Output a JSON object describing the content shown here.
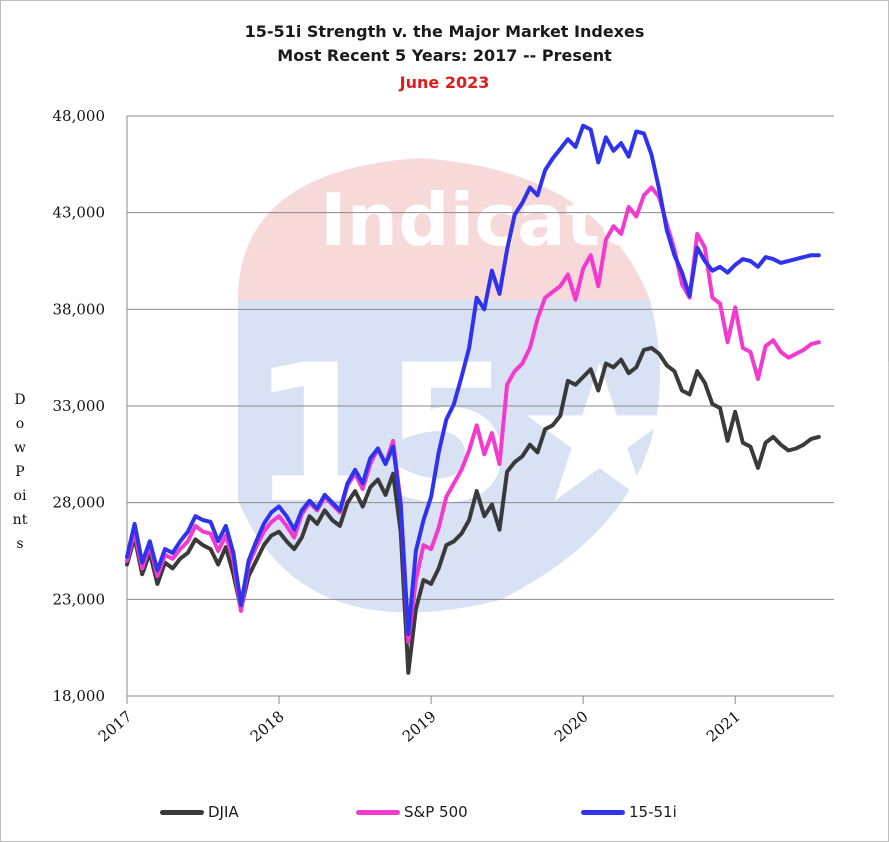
{
  "chart_data": {
    "type": "line",
    "title": "15-51i Strength v. the Major Market Indexes",
    "subtitle": "Most Recent 5 Years: 2017 -- Present",
    "date_label": "June 2023",
    "ylabel": "Dow Points",
    "xlabel": "",
    "ylim": [
      18000,
      48000
    ],
    "xlim": [
      2017.0,
      2021.65
    ],
    "y_ticks": [
      18000,
      23000,
      28000,
      33000,
      38000,
      43000,
      48000
    ],
    "y_tick_labels": [
      "18,000",
      "23,000",
      "28,000",
      "33,000",
      "38,000",
      "43,000",
      "48,000"
    ],
    "x_ticks": [
      2017,
      2018,
      2019,
      2020,
      2021
    ],
    "x_tick_labels": [
      "2017",
      "2018",
      "2019",
      "2020",
      "2021"
    ],
    "grid": "horizontal",
    "legend_position": "bottom",
    "series": [
      {
        "name": "DJIA",
        "color": "#3a3a3a",
        "x": [
          2017.0,
          2017.05,
          2017.1,
          2017.15,
          2017.2,
          2017.25,
          2017.3,
          2017.35,
          2017.4,
          2017.45,
          2017.5,
          2017.55,
          2017.6,
          2017.65,
          2017.7,
          2017.75,
          2017.8,
          2017.85,
          2017.9,
          2017.95,
          2018.0,
          2018.05,
          2018.1,
          2018.15,
          2018.2,
          2018.25,
          2018.3,
          2018.35,
          2018.4,
          2018.45,
          2018.5,
          2018.55,
          2018.6,
          2018.65,
          2018.7,
          2018.75,
          2018.8,
          2018.85,
          2018.9,
          2018.95,
          2019.0,
          2019.05,
          2019.1,
          2019.15,
          2019.2,
          2019.25,
          2019.3,
          2019.35,
          2019.4,
          2019.45,
          2019.5,
          2019.55,
          2019.6,
          2019.65,
          2019.7,
          2019.75,
          2019.8,
          2019.85,
          2019.9,
          2019.95,
          2020.0,
          2020.05,
          2020.1,
          2020.15,
          2020.2,
          2020.25,
          2020.3,
          2020.35,
          2020.4,
          2020.45,
          2020.5,
          2020.55,
          2020.6,
          2020.65,
          2020.7,
          2020.75,
          2020.8,
          2020.85,
          2020.9,
          2020.95,
          2021.0,
          2021.05,
          2021.1,
          2021.15,
          2021.2,
          2021.25,
          2021.3,
          2021.35,
          2021.4,
          2021.45,
          2021.5,
          2021.55
        ],
        "values": [
          24800,
          26200,
          24300,
          25400,
          23800,
          24900,
          24600,
          25100,
          25400,
          26100,
          25800,
          25600,
          24800,
          25700,
          24300,
          22500,
          24200,
          25000,
          25800,
          26300,
          26500,
          26000,
          25600,
          26200,
          27300,
          26900,
          27600,
          27100,
          26800,
          28000,
          28600,
          27800,
          28800,
          29200,
          28400,
          29500,
          26500,
          19200,
          22500,
          24000,
          23800,
          24600,
          25800,
          26000,
          26400,
          27100,
          28600,
          27300,
          27900,
          26600,
          29600,
          30100,
          30400,
          31000,
          30600,
          31800,
          32000,
          32500,
          34300,
          34100,
          34500,
          34900,
          33800,
          35200,
          35000,
          35400,
          34700,
          35000,
          35900,
          36000,
          35700,
          35100,
          34800,
          33800,
          33600,
          34800,
          34200,
          33100,
          32900,
          31200,
          32700,
          31100,
          30900,
          29800,
          31100,
          31400,
          31000,
          30700,
          30800,
          31000,
          31300,
          31400
        ]
      },
      {
        "name": "S&P 500",
        "color": "#f23ad0",
        "x": [
          2017.0,
          2017.05,
          2017.1,
          2017.15,
          2017.2,
          2017.25,
          2017.3,
          2017.35,
          2017.4,
          2017.45,
          2017.5,
          2017.55,
          2017.6,
          2017.65,
          2017.7,
          2017.75,
          2017.8,
          2017.85,
          2017.9,
          2017.95,
          2018.0,
          2018.05,
          2018.1,
          2018.15,
          2018.2,
          2018.25,
          2018.3,
          2018.35,
          2018.4,
          2018.45,
          2018.5,
          2018.55,
          2018.6,
          2018.65,
          2018.7,
          2018.75,
          2018.8,
          2018.85,
          2018.9,
          2018.95,
          2019.0,
          2019.05,
          2019.1,
          2019.15,
          2019.2,
          2019.25,
          2019.3,
          2019.35,
          2019.4,
          2019.45,
          2019.5,
          2019.55,
          2019.6,
          2019.65,
          2019.7,
          2019.75,
          2019.8,
          2019.85,
          2019.9,
          2019.95,
          2020.0,
          2020.05,
          2020.1,
          2020.15,
          2020.2,
          2020.25,
          2020.3,
          2020.35,
          2020.4,
          2020.45,
          2020.5,
          2020.55,
          2020.6,
          2020.65,
          2020.7,
          2020.75,
          2020.8,
          2020.85,
          2020.9,
          2020.95,
          2021.0,
          2021.05,
          2021.1,
          2021.15,
          2021.2,
          2021.25,
          2021.3,
          2021.35,
          2021.4,
          2021.45,
          2021.5,
          2021.55
        ],
        "values": [
          25000,
          26500,
          24600,
          25800,
          24200,
          25300,
          25100,
          25600,
          26000,
          26800,
          26500,
          26400,
          25500,
          26300,
          25000,
          22400,
          24800,
          25700,
          26500,
          27000,
          27300,
          26800,
          26200,
          27400,
          28000,
          27600,
          28300,
          27900,
          27500,
          28900,
          29500,
          28700,
          30000,
          30800,
          30000,
          31200,
          28000,
          20800,
          24000,
          25800,
          25600,
          26700,
          28300,
          29000,
          29700,
          30700,
          32000,
          30500,
          31600,
          30000,
          34100,
          34800,
          35200,
          36000,
          37500,
          38600,
          38900,
          39200,
          39800,
          38500,
          40100,
          40800,
          39200,
          41600,
          42300,
          41900,
          43300,
          42800,
          43900,
          44300,
          43800,
          42400,
          41100,
          39300,
          38600,
          41900,
          41200,
          38600,
          38300,
          36300,
          38100,
          36000,
          35800,
          34400,
          36100,
          36400,
          35800,
          35500,
          35700,
          35900,
          36200,
          36300
        ]
      },
      {
        "name": "15-51i",
        "color": "#2f33ee",
        "x": [
          2017.0,
          2017.05,
          2017.1,
          2017.15,
          2017.2,
          2017.25,
          2017.3,
          2017.35,
          2017.4,
          2017.45,
          2017.5,
          2017.55,
          2017.6,
          2017.65,
          2017.7,
          2017.75,
          2017.8,
          2017.85,
          2017.9,
          2017.95,
          2018.0,
          2018.05,
          2018.1,
          2018.15,
          2018.2,
          2018.25,
          2018.3,
          2018.35,
          2018.4,
          2018.45,
          2018.5,
          2018.55,
          2018.6,
          2018.65,
          2018.7,
          2018.75,
          2018.8,
          2018.85,
          2018.9,
          2018.95,
          2019.0,
          2019.05,
          2019.1,
          2019.15,
          2019.2,
          2019.25,
          2019.3,
          2019.35,
          2019.4,
          2019.45,
          2019.5,
          2019.55,
          2019.6,
          2019.65,
          2019.7,
          2019.75,
          2019.8,
          2019.85,
          2019.9,
          2019.95,
          2020.0,
          2020.05,
          2020.1,
          2020.15,
          2020.2,
          2020.25,
          2020.3,
          2020.35,
          2020.4,
          2020.45,
          2020.5,
          2020.55,
          2020.6,
          2020.65,
          2020.7,
          2020.75,
          2020.8,
          2020.85,
          2020.9,
          2020.95,
          2021.0,
          2021.05,
          2021.1,
          2021.15,
          2021.2,
          2021.25,
          2021.3,
          2021.35,
          2021.4,
          2021.45,
          2021.5,
          2021.55
        ],
        "values": [
          25200,
          26900,
          24900,
          26000,
          24500,
          25600,
          25400,
          26000,
          26500,
          27300,
          27100,
          27000,
          26000,
          26800,
          25400,
          22700,
          25000,
          26000,
          26900,
          27500,
          27800,
          27300,
          26600,
          27600,
          28100,
          27700,
          28400,
          28000,
          27600,
          29000,
          29700,
          29000,
          30300,
          30800,
          30000,
          30900,
          27900,
          21200,
          25500,
          27100,
          28300,
          30600,
          32300,
          33100,
          34500,
          36000,
          38600,
          38000,
          40000,
          38800,
          41100,
          42900,
          43500,
          44300,
          43900,
          45200,
          45800,
          46300,
          46800,
          46400,
          47500,
          47300,
          45600,
          46900,
          46200,
          46600,
          45900,
          47200,
          47100,
          46000,
          44200,
          42100,
          40800,
          39900,
          38700,
          41200,
          40500,
          40000,
          40200,
          39900,
          40300,
          40600,
          40500,
          40200,
          40700,
          40600,
          40400,
          40500,
          40600,
          40700,
          40800,
          40800
        ]
      }
    ]
  }
}
